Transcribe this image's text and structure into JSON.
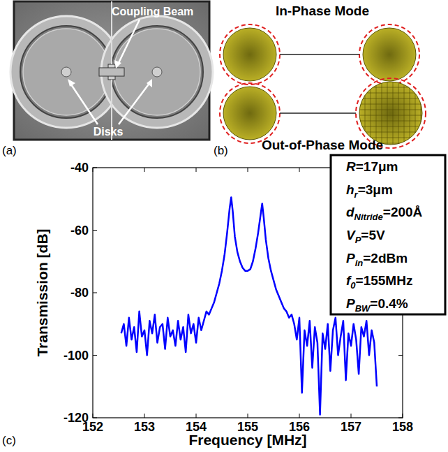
{
  "figure": {
    "panel_labels": [
      "(a)",
      "(b)",
      "(c)"
    ],
    "sem_image": {
      "labels": [
        "Coupling Beam",
        "Disks"
      ]
    },
    "mode_shapes": {
      "titles": [
        "In-Phase Mode",
        "Out-of-Phase Mode"
      ]
    }
  },
  "chart_data": {
    "type": "line",
    "xlabel": "Frequency [MHz]",
    "ylabel": "Transmission [dB]",
    "x": [
      152.55,
      152.6,
      152.65,
      152.7,
      152.75,
      152.8,
      152.85,
      152.9,
      152.95,
      153.0,
      153.05,
      153.1,
      153.15,
      153.2,
      153.25,
      153.3,
      153.35,
      153.4,
      153.45,
      153.5,
      153.55,
      153.6,
      153.65,
      153.7,
      153.75,
      153.8,
      153.85,
      153.9,
      153.95,
      154.0,
      154.05,
      154.1,
      154.15,
      154.2,
      154.25,
      154.3,
      154.35,
      154.4,
      154.45,
      154.5,
      154.55,
      154.6,
      154.65,
      154.68,
      154.71,
      154.75,
      154.8,
      154.85,
      154.9,
      154.95,
      155.0,
      155.05,
      155.1,
      155.15,
      155.2,
      155.25,
      155.28,
      155.31,
      155.35,
      155.4,
      155.45,
      155.5,
      155.55,
      155.6,
      155.65,
      155.7,
      155.75,
      155.8,
      155.85,
      155.9,
      155.95,
      156.0,
      156.05,
      156.1,
      156.15,
      156.2,
      156.25,
      156.3,
      156.35,
      156.4,
      156.45,
      156.5,
      156.55,
      156.6,
      156.65,
      156.7,
      156.75,
      156.8,
      156.85,
      156.9,
      156.95,
      157.0,
      157.05,
      157.1,
      157.15,
      157.2,
      157.25,
      157.3,
      157.35,
      157.4,
      157.45,
      157.5
    ],
    "series": [
      {
        "name": "Transmission",
        "color": "#0000ff",
        "values": [
          -93,
          -90,
          -97,
          -88,
          -95,
          -91,
          -99,
          -86,
          -94,
          -92,
          -100,
          -89,
          -93,
          -87,
          -96,
          -91,
          -90,
          -98,
          -88,
          -94,
          -92,
          -97,
          -89,
          -95,
          -91,
          -99,
          -87,
          -93,
          -90,
          -96,
          -88,
          -92,
          -89,
          -86,
          -87,
          -85,
          -83,
          -80,
          -77,
          -73,
          -68,
          -61,
          -53,
          -49.5,
          -54,
          -62,
          -67,
          -70,
          -72,
          -73,
          -73,
          -72.5,
          -70,
          -66,
          -61,
          -55,
          -51.5,
          -56,
          -63,
          -69,
          -73,
          -76,
          -79,
          -81,
          -83,
          -85,
          -86,
          -88,
          -87,
          -90,
          -95,
          -88,
          -112,
          -92,
          -97,
          -89,
          -104,
          -91,
          -96,
          -119,
          -93,
          -98,
          -90,
          -105,
          -92,
          -88,
          -100,
          -94,
          -89,
          -108,
          -93,
          -97,
          -90,
          -95,
          -106,
          -91,
          -94,
          -89,
          -100,
          -92,
          -96,
          -110
        ]
      }
    ],
    "xlim": [
      152,
      158
    ],
    "xticks": [
      152,
      153,
      154,
      155,
      156,
      157,
      158
    ],
    "ylim": [
      -120,
      -40
    ],
    "yticks": [
      -120,
      -100,
      -80,
      -60,
      -40
    ],
    "grid": false,
    "annotations": [
      {
        "symbol": "R",
        "value": "=17μm"
      },
      {
        "symbol": "h",
        "subscript": "r",
        "value": "=3μm"
      },
      {
        "symbol": "d",
        "subscript": "Nitride",
        "value": "=200Å"
      },
      {
        "symbol": "V",
        "subscript": "P",
        "value": "=5V"
      },
      {
        "symbol": "P",
        "subscript": "in",
        "value": "=2dBm"
      },
      {
        "symbol": "f",
        "subscript": "0",
        "value": "=155MHz"
      },
      {
        "symbol": "P",
        "subscript": "BW",
        "value": "=0.4%"
      }
    ]
  }
}
